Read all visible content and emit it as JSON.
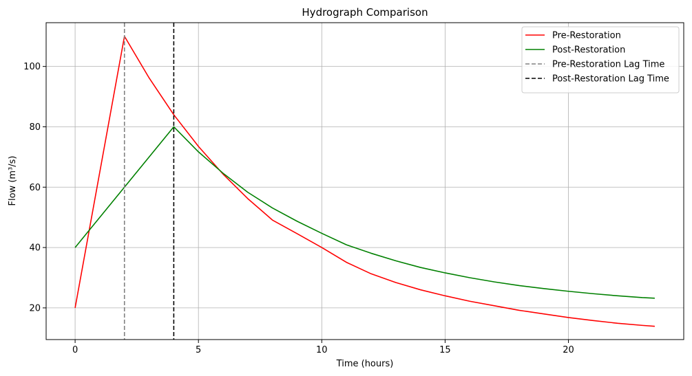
{
  "chart_data": {
    "type": "line",
    "title": "Hydrograph Comparison",
    "xlabel": "Time (hours)",
    "ylabel": "Flow (m³/s)",
    "xlim": [
      -1.175,
      24.675
    ],
    "ylim": [
      9.5,
      114.5
    ],
    "xticks": [
      0,
      5,
      10,
      15,
      20
    ],
    "yticks": [
      20,
      40,
      60,
      80,
      100
    ],
    "grid": true,
    "legend_position": "top-right",
    "series": [
      {
        "name": "Pre-Restoration",
        "color": "#ff0000",
        "style": "solid",
        "x": [
          0,
          2,
          3,
          4,
          5,
          6,
          7,
          8,
          9,
          10,
          11,
          12,
          13,
          14,
          15,
          16,
          17,
          18,
          19,
          20,
          21,
          22,
          23,
          23.5
        ],
        "y": [
          20,
          110,
          96.2,
          84,
          73.5,
          64.3,
          56.2,
          49.1,
          44.6,
          40,
          35.1,
          31.3,
          28.4,
          26,
          24,
          22.2,
          20.7,
          19.2,
          18,
          16.8,
          15.8,
          14.9,
          14.2,
          13.9
        ]
      },
      {
        "name": "Post-Restoration",
        "color": "#008000",
        "style": "solid",
        "x": [
          0,
          4,
          5,
          6,
          7,
          8,
          9,
          10,
          11,
          12,
          13,
          14,
          15,
          16,
          17,
          18,
          19,
          20,
          21,
          22,
          23,
          23.5
        ],
        "y": [
          40,
          80,
          71.7,
          64.6,
          58.3,
          53.1,
          48.7,
          44.7,
          40.9,
          38.1,
          35.6,
          33.4,
          31.6,
          30,
          28.6,
          27.4,
          26.4,
          25.5,
          24.7,
          24,
          23.4,
          23.2
        ]
      }
    ],
    "vlines": [
      {
        "name": "Pre-Restoration Lag Time",
        "x": 2,
        "color": "#808080",
        "style": "dashed"
      },
      {
        "name": "Post-Restoration Lag Time",
        "x": 4,
        "color": "#000000",
        "style": "dashed"
      }
    ]
  }
}
